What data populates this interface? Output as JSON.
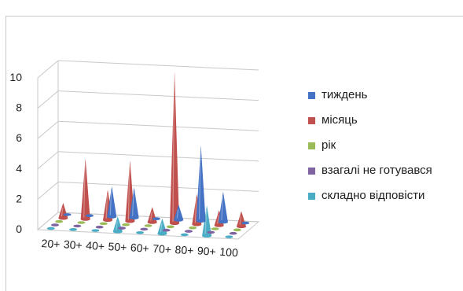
{
  "chart_data": {
    "type": "3d-cone",
    "title": "",
    "ylim": [
      0,
      10
    ],
    "yticks": [
      "0",
      "2",
      "4",
      "6",
      "8",
      "10"
    ],
    "categories": [
      "20+",
      "30+",
      "40+",
      "50+",
      "60+",
      "70+",
      "80+",
      "90+",
      "100"
    ],
    "series": [
      {
        "name": "тиждень",
        "color": "#4472c4",
        "values": [
          0,
          0,
          2,
          2,
          0,
          1,
          5,
          2,
          0
        ]
      },
      {
        "name": "місяць",
        "color": "#c0504d",
        "values": [
          1,
          4,
          2,
          4,
          1,
          10,
          2,
          1,
          1
        ]
      },
      {
        "name": "рік",
        "color": "#9bbb59",
        "values": [
          0,
          0,
          0,
          0,
          0,
          0,
          0,
          0,
          0
        ]
      },
      {
        "name": "взагалі не готувався",
        "color": "#8064a2",
        "values": [
          0,
          0,
          0,
          0,
          0,
          0,
          0,
          0,
          0
        ]
      },
      {
        "name": "складно відповісти",
        "color": "#4bacc6",
        "values": [
          0,
          0,
          0,
          1,
          0,
          1,
          0,
          2,
          0
        ]
      }
    ],
    "legend_position": "right",
    "grid": true
  }
}
